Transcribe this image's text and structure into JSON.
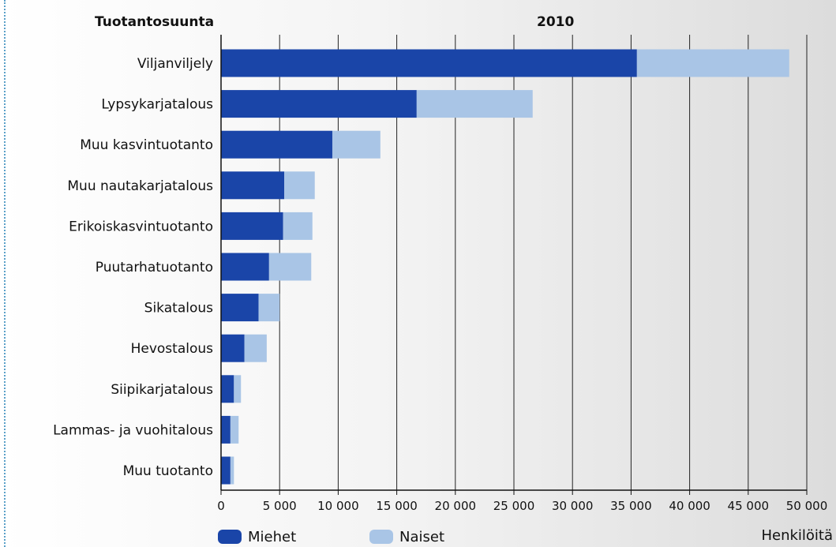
{
  "chart_data": {
    "type": "bar",
    "orientation": "horizontal",
    "stacked": true,
    "category_header": "Tuotantosuunta",
    "title": "2010",
    "xlabel": "Henkilöitä",
    "categories": [
      "Viljanviljely",
      "Lypsykarjatalous",
      "Muu kasvintuotanto",
      "Muu nautakarjatalous",
      "Erikoiskasvintuotanto",
      "Puutarhatuotanto",
      "Sikatalous",
      "Hevostalous",
      "Siipikarjatalous",
      "Lammas- ja vuohitalous",
      "Muu tuotanto"
    ],
    "series": [
      {
        "name": "Miehet",
        "color": "#1a45a8",
        "values": [
          35500,
          16700,
          9500,
          5400,
          5300,
          4100,
          3200,
          2000,
          1100,
          800,
          800
        ]
      },
      {
        "name": "Naiset",
        "color": "#a9c5e6",
        "values": [
          13000,
          9900,
          4100,
          2600,
          2500,
          3600,
          1800,
          1900,
          600,
          700,
          300
        ]
      }
    ],
    "xlim": [
      0,
      50000
    ],
    "xticks": [
      0,
      5000,
      10000,
      15000,
      20000,
      25000,
      30000,
      35000,
      40000,
      45000,
      50000
    ],
    "xtick_labels": [
      "0",
      "5 000",
      "10 000",
      "15 000",
      "20 000",
      "25 000",
      "30 000",
      "35 000",
      "40 000",
      "45 000",
      "50 000"
    ],
    "grid": "vertical",
    "legend_position": "bottom-left"
  }
}
